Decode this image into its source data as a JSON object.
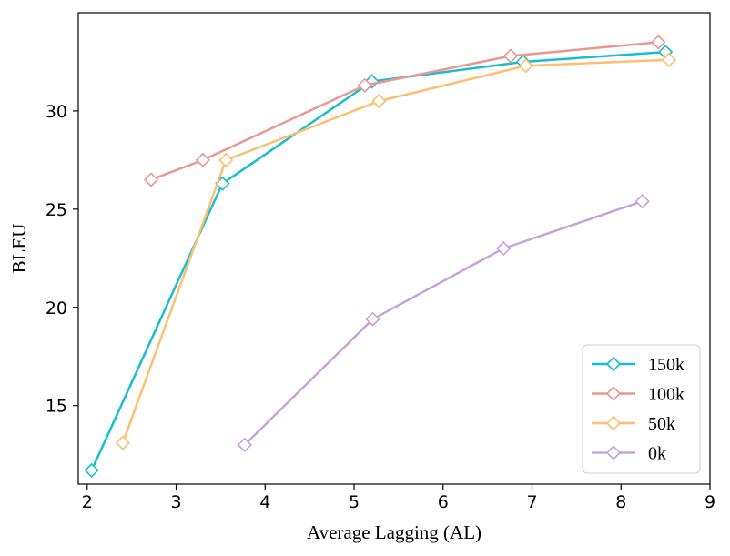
{
  "chart_data": {
    "type": "line",
    "title": "",
    "xlabel": "Average Lagging (AL)",
    "ylabel": "BLEU",
    "xlim": [
      1.9,
      9.0
    ],
    "ylim": [
      11.0,
      35.0
    ],
    "xticks": [
      2,
      3,
      4,
      5,
      6,
      7,
      8,
      9
    ],
    "yticks": [
      15,
      20,
      25,
      30
    ],
    "grid": false,
    "legend_position": "lower-right",
    "marker": "diamond-open",
    "series": [
      {
        "name": "150k",
        "color": "#17becf",
        "x": [
          2.05,
          3.52,
          5.2,
          6.9,
          8.5
        ],
        "y": [
          11.7,
          26.3,
          31.5,
          32.5,
          33.0
        ]
      },
      {
        "name": "100k",
        "color": "#e8988f",
        "x": [
          2.72,
          3.3,
          5.12,
          6.76,
          8.42
        ],
        "y": [
          26.5,
          27.5,
          31.3,
          32.8,
          33.5
        ]
      },
      {
        "name": "50k",
        "color": "#fdbf6f",
        "x": [
          2.4,
          3.56,
          5.28,
          6.93,
          8.54
        ],
        "y": [
          13.1,
          27.5,
          30.5,
          32.3,
          32.6
        ]
      },
      {
        "name": "0k",
        "color": "#c5a3dd",
        "x": [
          3.77,
          5.21,
          6.68,
          8.24
        ],
        "y": [
          13.0,
          19.4,
          23.0,
          25.4
        ]
      }
    ]
  }
}
